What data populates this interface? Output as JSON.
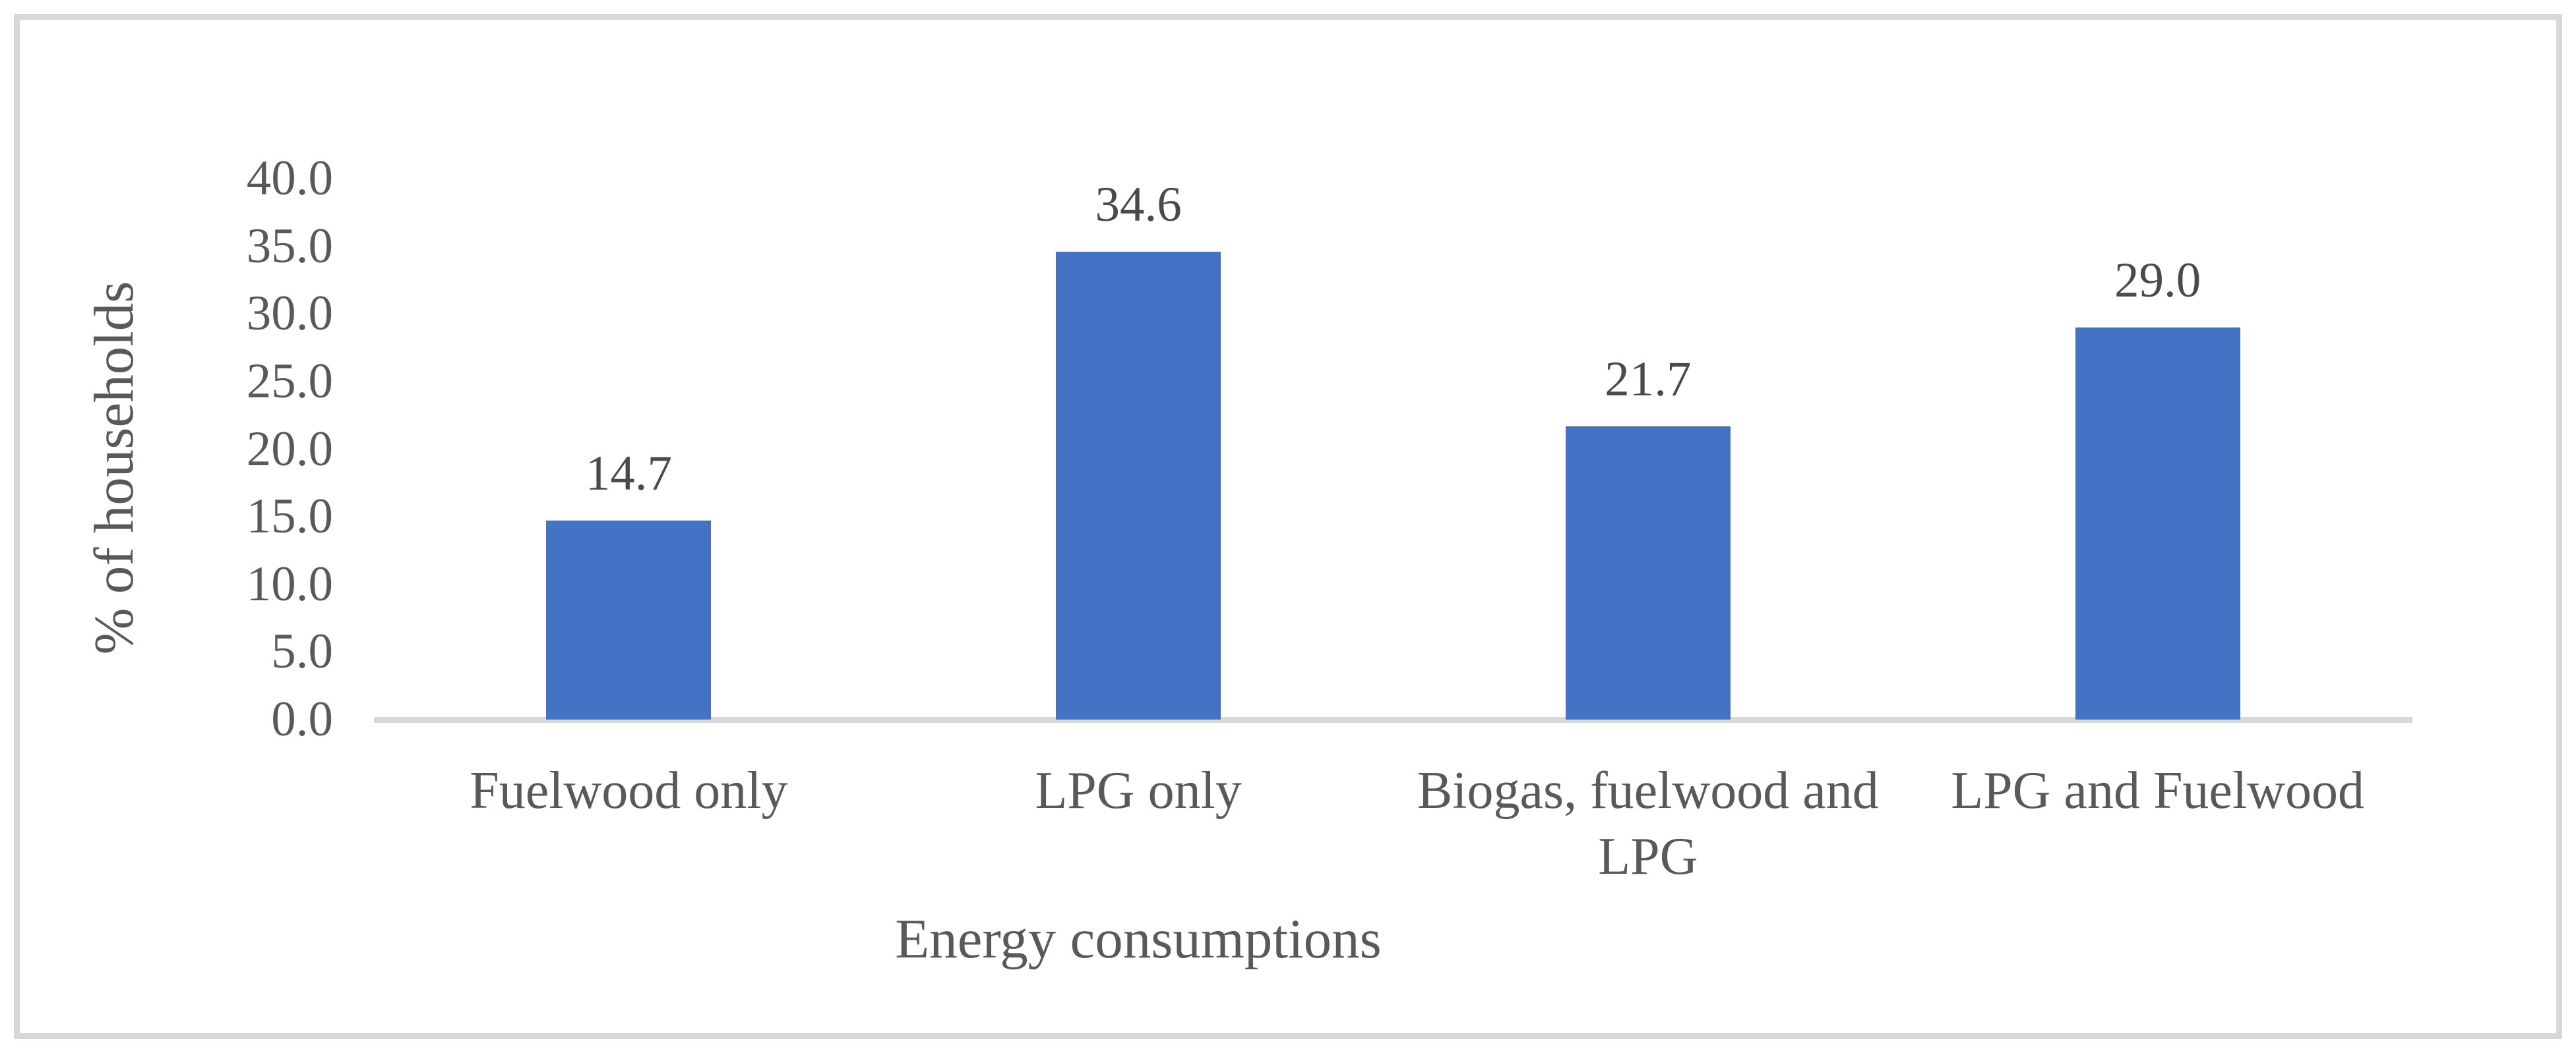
{
  "chart_data": {
    "type": "bar",
    "title": "",
    "categories": [
      "Fuelwood only",
      "LPG only",
      "Biogas, fuelwood and LPG",
      "LPG and Fuelwood"
    ],
    "values": [
      14.7,
      34.6,
      21.7,
      29.0
    ],
    "value_labels": [
      "14.7",
      "34.6",
      "21.7",
      "29.0"
    ],
    "xlabel": "Energy consumptions",
    "ylabel": "% of households",
    "ylim": [
      0,
      40
    ],
    "ytick_step": 5,
    "ytick_labels": [
      "0.0",
      "5.0",
      "10.0",
      "15.0",
      "20.0",
      "25.0",
      "30.0",
      "35.0",
      "40.0"
    ],
    "grid": false,
    "legend": false,
    "bar_color": "#4472C4",
    "axis_line_color": "#D9D9D9",
    "frame_border_color": "#D8D8D8",
    "text_color": "#595959"
  }
}
